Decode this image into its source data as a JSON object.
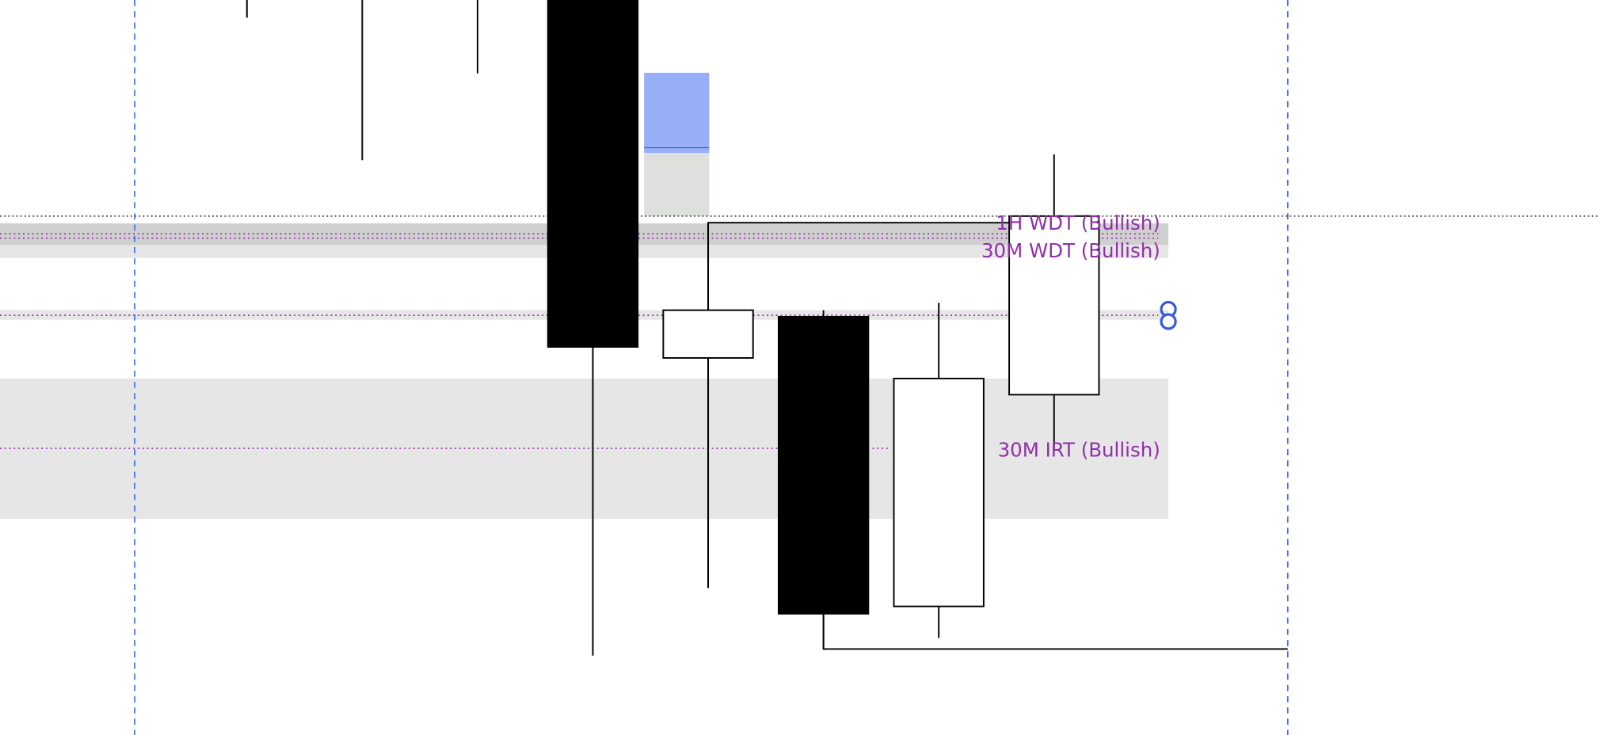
{
  "chart_data": {
    "type": "candlestick",
    "price_scale": "relative (no axis printed), 0 = bottom of view, 100 = top of view",
    "candles": [
      {
        "index": 0,
        "low": 97.6,
        "partial": true
      },
      {
        "index": 1,
        "low": 78.2,
        "partial": true
      },
      {
        "index": 2,
        "low": 90.0,
        "partial": true
      },
      {
        "index": 3,
        "open": 100,
        "high": 100,
        "low": 10.8,
        "close": 52.8
      },
      {
        "index": 4,
        "open": 51.3,
        "high": 69.7,
        "low": 20.0,
        "close": 57.8
      },
      {
        "index": 5,
        "open": 56.9,
        "high": 57.8,
        "low": 11.7,
        "close": 16.5
      },
      {
        "index": 6,
        "open": 17.5,
        "high": 58.8,
        "low": 13.2,
        "close": 48.5
      },
      {
        "index": 7,
        "open": 46.3,
        "high": 79.0,
        "low": 38.9,
        "close": 70.6
      }
    ],
    "session_markers": [
      -1,
      9
    ],
    "current_price_line": 70.6,
    "zones": [
      {
        "top": 69.6,
        "bottom": 64.9,
        "color": "#e6e6e6"
      },
      {
        "top": 57.8,
        "bottom": 56.5,
        "color": "#e6e6e6"
      },
      {
        "top": 48.5,
        "bottom": 29.4,
        "color": "#e6e6e6"
      }
    ],
    "boxes": [
      {
        "from": 3.4,
        "to": 4.0,
        "top": 90.1,
        "bottom": 79.2,
        "mid": 79.9,
        "color": "#99aef8"
      },
      {
        "from": 3.4,
        "to": 4.0,
        "top": 79.2,
        "bottom": 70.6,
        "color": "#dde0dc"
      }
    ],
    "levels": [
      {
        "price": 68.2,
        "label": "1H WDT (Bullish)"
      },
      {
        "price": 67.6,
        "label": "30M WDT (Bullish)"
      },
      {
        "price": 57.1,
        "label": ""
      },
      {
        "price": 39.0,
        "label": "30M IRT (Bullish)"
      }
    ],
    "brackets": [
      {
        "from": 4,
        "to": 7,
        "price": 69.7
      },
      {
        "from": 5,
        "to": 9,
        "price": 11.7
      }
    ],
    "colors": {
      "level": "#9030a8",
      "marker": "#3a6df0",
      "bull": "#ffffff",
      "bear": "#000000",
      "icon": "#3a5ad8"
    },
    "icons": {
      "alert_handle": "alert-handle-icon"
    }
  }
}
